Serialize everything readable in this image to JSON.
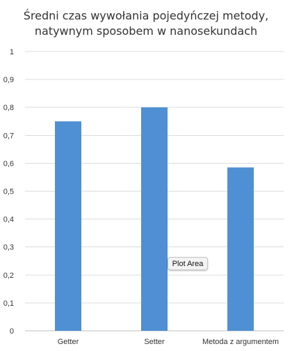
{
  "chart_data": {
    "type": "bar",
    "title_lines": [
      "Średni czas wywołania pojedyńczej metody,",
      "natywnym sposobem w nanosekundach"
    ],
    "categories": [
      "Getter",
      "Setter",
      "Metoda z argumentem"
    ],
    "values": [
      0.75,
      0.8,
      0.585
    ],
    "yticks": [
      "0",
      "0,1",
      "0,2",
      "0,3",
      "0,4",
      "0,5",
      "0,6",
      "0,7",
      "0,8",
      "0,9",
      "1"
    ],
    "ylim": [
      0,
      1
    ],
    "grid": true,
    "legend": "none",
    "colors": {
      "bar": "#4f8fd3",
      "grid": "#dcdcdc",
      "axis": "#bfbfbf"
    }
  },
  "tooltip": {
    "label": "Plot Area"
  }
}
